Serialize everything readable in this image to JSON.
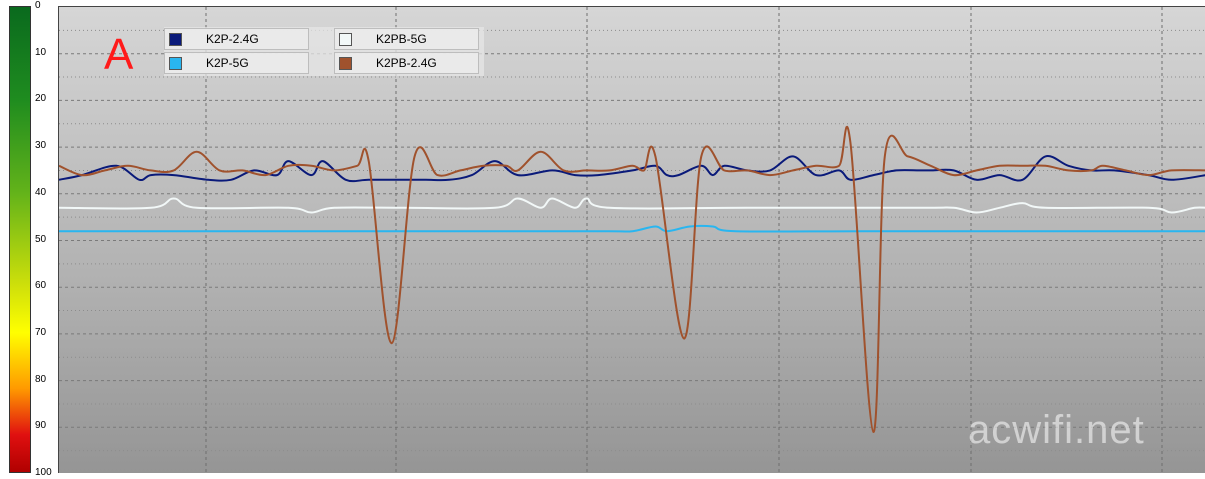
{
  "chart_data": {
    "type": "line",
    "y_axis": {
      "ylim": [
        0,
        100
      ],
      "inverted": true,
      "ticks": [
        "0",
        "10",
        "20",
        "30",
        "40",
        "50",
        "60",
        "70",
        "80",
        "90",
        "100"
      ]
    },
    "x_range": [
      0,
      1
    ],
    "grid": true,
    "legend_position": "top-left",
    "panel_label": "A",
    "watermark": "acwifi.net",
    "series": [
      {
        "name": "K2P-2.4G",
        "color": "#0a1a7a",
        "points": [
          [
            0,
            37
          ],
          [
            0.02,
            36
          ],
          [
            0.05,
            34
          ],
          [
            0.07,
            37
          ],
          [
            0.08,
            36
          ],
          [
            0.1,
            36
          ],
          [
            0.13,
            37
          ],
          [
            0.15,
            37
          ],
          [
            0.17,
            35
          ],
          [
            0.19,
            36
          ],
          [
            0.2,
            33
          ],
          [
            0.22,
            36
          ],
          [
            0.23,
            33
          ],
          [
            0.25,
            37
          ],
          [
            0.27,
            37
          ],
          [
            0.3,
            37
          ],
          [
            0.32,
            37
          ],
          [
            0.34,
            37
          ],
          [
            0.36,
            36
          ],
          [
            0.38,
            33
          ],
          [
            0.4,
            36
          ],
          [
            0.43,
            35
          ],
          [
            0.45,
            36
          ],
          [
            0.47,
            36
          ],
          [
            0.5,
            35
          ],
          [
            0.52,
            34
          ],
          [
            0.53,
            36
          ],
          [
            0.54,
            36
          ],
          [
            0.56,
            34
          ],
          [
            0.57,
            36
          ],
          [
            0.58,
            34
          ],
          [
            0.6,
            35
          ],
          [
            0.62,
            35
          ],
          [
            0.64,
            32
          ],
          [
            0.66,
            36
          ],
          [
            0.68,
            35
          ],
          [
            0.69,
            37
          ],
          [
            0.71,
            36
          ],
          [
            0.73,
            35
          ],
          [
            0.75,
            35
          ],
          [
            0.76,
            35
          ],
          [
            0.78,
            35
          ],
          [
            0.8,
            37
          ],
          [
            0.82,
            36
          ],
          [
            0.84,
            37
          ],
          [
            0.86,
            32
          ],
          [
            0.88,
            34
          ],
          [
            0.9,
            35
          ],
          [
            0.92,
            35
          ],
          [
            0.95,
            36
          ],
          [
            0.97,
            37
          ],
          [
            1,
            36
          ]
        ]
      },
      {
        "name": "K2P-5G",
        "color": "#29b6f0",
        "points": [
          [
            0,
            48
          ],
          [
            0.2,
            48
          ],
          [
            0.4,
            48
          ],
          [
            0.48,
            48
          ],
          [
            0.5,
            48
          ],
          [
            0.52,
            47
          ],
          [
            0.53,
            48
          ],
          [
            0.55,
            47
          ],
          [
            0.57,
            47
          ],
          [
            0.59,
            48
          ],
          [
            0.7,
            48
          ],
          [
            0.85,
            48
          ],
          [
            1,
            48
          ]
        ]
      },
      {
        "name": "K2PB-5G",
        "color": "#f2f8f8",
        "points": [
          [
            0,
            43
          ],
          [
            0.08,
            43
          ],
          [
            0.1,
            41
          ],
          [
            0.12,
            43
          ],
          [
            0.2,
            43
          ],
          [
            0.22,
            44
          ],
          [
            0.24,
            43
          ],
          [
            0.3,
            43
          ],
          [
            0.38,
            43
          ],
          [
            0.4,
            41
          ],
          [
            0.42,
            43
          ],
          [
            0.43,
            41
          ],
          [
            0.45,
            43
          ],
          [
            0.46,
            41
          ],
          [
            0.48,
            43
          ],
          [
            0.6,
            43
          ],
          [
            0.75,
            43
          ],
          [
            0.78,
            43
          ],
          [
            0.8,
            44
          ],
          [
            0.82,
            43
          ],
          [
            0.84,
            42
          ],
          [
            0.86,
            43
          ],
          [
            0.95,
            43
          ],
          [
            0.97,
            44
          ],
          [
            0.99,
            43
          ],
          [
            1,
            43
          ]
        ]
      },
      {
        "name": "K2PB-2.4G",
        "color": "#a0522d",
        "points": [
          [
            0,
            34
          ],
          [
            0.02,
            36
          ],
          [
            0.04,
            35
          ],
          [
            0.06,
            34
          ],
          [
            0.08,
            35
          ],
          [
            0.1,
            35
          ],
          [
            0.12,
            31
          ],
          [
            0.14,
            35
          ],
          [
            0.16,
            35
          ],
          [
            0.18,
            36
          ],
          [
            0.2,
            34
          ],
          [
            0.22,
            34
          ],
          [
            0.24,
            35
          ],
          [
            0.26,
            34
          ],
          [
            0.27,
            33
          ],
          [
            0.29,
            72
          ],
          [
            0.31,
            32
          ],
          [
            0.33,
            36
          ],
          [
            0.35,
            35
          ],
          [
            0.37,
            34
          ],
          [
            0.39,
            34
          ],
          [
            0.4,
            35
          ],
          [
            0.42,
            31
          ],
          [
            0.44,
            35
          ],
          [
            0.46,
            35
          ],
          [
            0.48,
            35
          ],
          [
            0.5,
            34
          ],
          [
            0.51,
            35
          ],
          [
            0.52,
            32
          ],
          [
            0.545,
            71
          ],
          [
            0.56,
            32
          ],
          [
            0.58,
            35
          ],
          [
            0.6,
            35
          ],
          [
            0.62,
            36
          ],
          [
            0.64,
            35
          ],
          [
            0.66,
            34
          ],
          [
            0.68,
            34
          ],
          [
            0.69,
            29
          ],
          [
            0.71,
            91
          ],
          [
            0.72,
            32
          ],
          [
            0.74,
            32
          ],
          [
            0.76,
            34
          ],
          [
            0.78,
            36
          ],
          [
            0.8,
            35
          ],
          [
            0.82,
            34
          ],
          [
            0.84,
            34
          ],
          [
            0.86,
            34
          ],
          [
            0.88,
            35
          ],
          [
            0.9,
            35
          ],
          [
            0.91,
            34
          ],
          [
            0.93,
            35
          ],
          [
            0.95,
            36
          ],
          [
            0.97,
            35
          ],
          [
            1,
            35
          ]
        ]
      }
    ]
  }
}
